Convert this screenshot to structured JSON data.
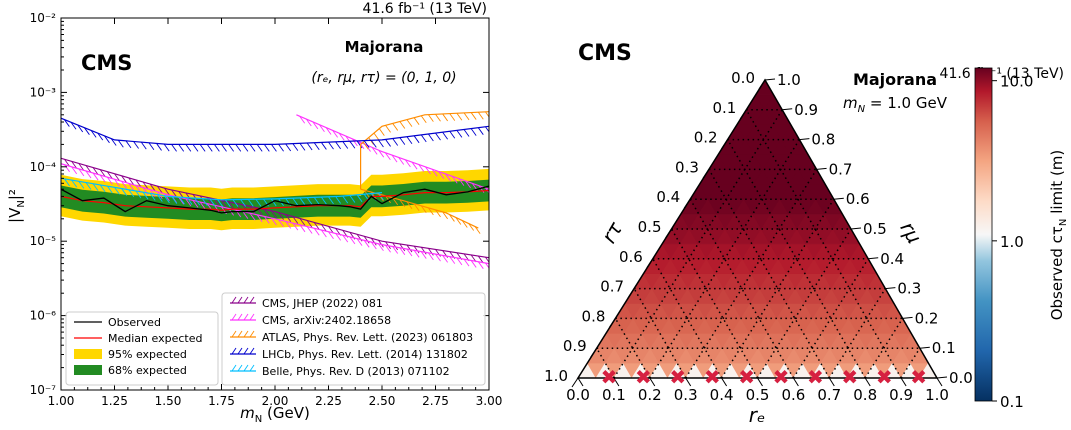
{
  "chart_data": [
    {
      "type": "line",
      "lumi_label": "41.6 fb⁻¹ (13 TeV)",
      "cms_label": "CMS",
      "model_label": "Majorana",
      "coupling_label": "(rₑ, rμ, rτ) = (0, 1, 0)",
      "xlabel": "m",
      "xlabel_sub": "N",
      "xlabel_unit": " (GeV)",
      "ylabel": "|V",
      "ylabel_sub": "N",
      "ylabel_end": "|²",
      "xlim": [
        1.0,
        3.0
      ],
      "ylim_log10": [
        -7,
        -2
      ],
      "xticks": [
        "1.00",
        "1.25",
        "1.50",
        "1.75",
        "2.00",
        "2.25",
        "2.50",
        "2.75",
        "3.00"
      ],
      "yticks": [
        "10⁻⁷",
        "10⁻⁶",
        "10⁻⁵",
        "10⁻⁴",
        "10⁻³",
        "10⁻²"
      ],
      "colors": {
        "observed": "#000000",
        "median": "#ff0000",
        "band95": "#ffd700",
        "band68": "#228b22",
        "cms2022": "#8b008b",
        "cms2024": "#ff33ff",
        "atlas": "#ff8c00",
        "lhcb": "#0000cd",
        "belle": "#00bfff"
      },
      "legend_left": [
        "Observed",
        "Median expected",
        "95% expected",
        "68% expected"
      ],
      "legend_right": [
        "CMS, JHEP (2022) 081",
        "CMS, arXiv:2402.18658",
        "ATLAS, Phys. Rev. Lett. (2023) 061803",
        "LHCb, Phys. Rev. Lett. (2014) 131802",
        "Belle, Phys. Rev. D (2013) 071102"
      ],
      "x": [
        1.0,
        1.1,
        1.2,
        1.3,
        1.4,
        1.5,
        1.6,
        1.7,
        1.75,
        1.8,
        1.9,
        2.0,
        2.1,
        2.2,
        2.3,
        2.35,
        2.4,
        2.45,
        2.5,
        2.6,
        2.7,
        2.8,
        2.9,
        3.0
      ],
      "observed": [
        5e-05,
        3.5e-05,
        3.8e-05,
        2.5e-05,
        3.5e-05,
        3e-05,
        2.8e-05,
        2.6e-05,
        2.4e-05,
        2.5e-05,
        2.5e-05,
        3.5e-05,
        3e-05,
        3.1e-05,
        3e-05,
        2.9e-05,
        2.7e-05,
        4e-05,
        3.2e-05,
        4.5e-05,
        5e-05,
        4.2e-05,
        4.6e-05,
        5.5e-05
      ],
      "median": [
        4e-05,
        3.5e-05,
        3.3e-05,
        3e-05,
        2.9e-05,
        2.8e-05,
        2.7e-05,
        2.7e-05,
        2.6e-05,
        2.7e-05,
        2.7e-05,
        2.8e-05,
        2.9e-05,
        3e-05,
        3e-05,
        3e-05,
        2.9e-05,
        4e-05,
        4e-05,
        4.2e-05,
        4.5e-05,
        4.5e-05,
        4.6e-05,
        4.8e-05
      ],
      "series": [
        {
          "name": "CMS, JHEP (2022) 081",
          "x": [
            1.0,
            1.5,
            2.0,
            2.5,
            3.0
          ],
          "y": [
            0.00013,
            5e-05,
            2.5e-05,
            1e-05,
            6e-06
          ]
        },
        {
          "name": "CMS, arXiv:2402.18658",
          "x": [
            1.0,
            1.5,
            2.0,
            2.5,
            3.0
          ],
          "y": [
            0.00011,
            4.2e-05,
            2e-05,
            9e-06,
            5e-06
          ]
        },
        {
          "name": "CMS, arXiv:2402.18658",
          "x": [
            2.1,
            2.5,
            3.0
          ],
          "y": [
            0.0005,
            0.00016,
            5e-05
          ]
        },
        {
          "name": "ATLAS, Phys. Rev. Lett. (2023) 061803",
          "x": [
            2.4,
            2.5,
            2.7,
            3.0
          ],
          "y": [
            0.0002,
            0.00035,
            0.0005,
            0.00055
          ]
        },
        {
          "name": "ATLAS, Phys. Rev. Lett. (2023) 061803",
          "x": [
            2.4,
            2.6,
            2.8,
            2.95
          ],
          "y": [
            5e-05,
            3.5e-05,
            2.4e-05,
            1.5e-05
          ]
        },
        {
          "name": "LHCb, Phys. Rev. Lett. (2014) 131802",
          "x": [
            1.0,
            1.25,
            1.5,
            2.0,
            2.5,
            3.0
          ],
          "y": [
            0.00045,
            0.00023,
            0.0002,
            0.0002,
            0.00023,
            0.00035
          ]
        },
        {
          "name": "Belle, Phys. Rev. D (2013) 071102",
          "x": [
            1.0,
            1.5,
            1.75,
            2.0,
            2.3,
            2.5
          ],
          "y": [
            7e-05,
            4e-05,
            3.6e-05,
            3.7e-05,
            4e-05,
            4.5e-05
          ]
        }
      ]
    },
    {
      "type": "heatmap",
      "cms_label": "CMS",
      "lumi_label": "41.6 fb⁻¹ (13 TeV)",
      "model_label": "Majorana",
      "mass_label": "m",
      "mass_sub": "N",
      "mass_value": " = 1.0 GeV",
      "axis_re": "rₑ",
      "axis_rmu": "rμ",
      "axis_rtau": "rτ",
      "ticks": [
        "0.0",
        "0.1",
        "0.2",
        "0.3",
        "0.4",
        "0.5",
        "0.6",
        "0.7",
        "0.8",
        "0.9",
        "1.0"
      ],
      "colorbar_label": "Observed cτ",
      "colorbar_sub": "N",
      "colorbar_unit": " limit (m)",
      "colorbar_ticks": [
        "10.0",
        "1.0",
        "0.1"
      ],
      "colorscale": "RdBu_r log",
      "marker_color": "#d62040",
      "marker_note": "x markers along rμ = 0 edge"
    }
  ]
}
